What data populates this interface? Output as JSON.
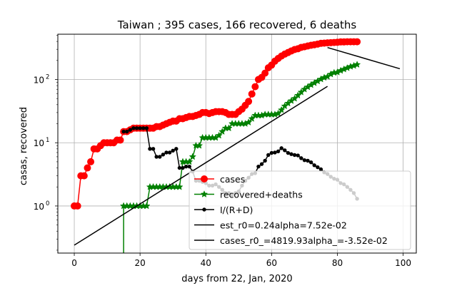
{
  "chart_data": {
    "type": "line",
    "title": "Taiwan ; 395 cases, 166 recovered, 6 deaths",
    "xlabel": "days from 22, Jan, 2020",
    "ylabel": "casas, recovered",
    "xlim": [
      -5,
      104
    ],
    "ylim": [
      0.18,
      520
    ],
    "yscale": "log",
    "grid": true,
    "legend_position": "lower right",
    "x_ticks": [
      0,
      20,
      40,
      60,
      80,
      100
    ],
    "y_ticks": [
      {
        "value": 1,
        "base": "10",
        "exp": "0"
      },
      {
        "value": 10,
        "base": "10",
        "exp": "1"
      },
      {
        "value": 100,
        "base": "10",
        "exp": "2"
      }
    ],
    "series": [
      {
        "name": "cases",
        "color": "#ff0000",
        "marker": "circle",
        "x": [
          0,
          1,
          2,
          3,
          4,
          5,
          6,
          7,
          8,
          9,
          10,
          11,
          12,
          13,
          14,
          15,
          16,
          17,
          18,
          19,
          20,
          21,
          22,
          23,
          24,
          25,
          26,
          27,
          28,
          29,
          30,
          31,
          32,
          33,
          34,
          35,
          36,
          37,
          38,
          39,
          40,
          41,
          42,
          43,
          44,
          45,
          46,
          47,
          48,
          49,
          50,
          51,
          52,
          53,
          54,
          55,
          56,
          57,
          58,
          59,
          60,
          61,
          62,
          63,
          64,
          65,
          66,
          67,
          68,
          69,
          70,
          71,
          72,
          73,
          74,
          75,
          76,
          77,
          78,
          79,
          80,
          81,
          82,
          83,
          84,
          85,
          86
        ],
        "y": [
          1,
          1,
          3,
          3,
          4,
          5,
          8,
          8,
          9,
          10,
          10,
          10,
          10,
          11,
          11,
          15,
          15,
          16,
          17,
          17,
          17,
          17,
          17,
          17,
          17,
          18,
          18,
          19,
          20,
          21,
          22,
          22,
          24,
          24,
          25,
          26,
          26,
          27,
          28,
          30,
          30,
          29,
          30,
          31,
          31,
          31,
          30,
          28,
          28,
          28,
          31,
          34,
          39,
          45,
          59,
          77,
          100,
          108,
          126,
          153,
          169,
          195,
          215,
          235,
          252,
          267,
          283,
          298,
          306,
          322,
          329,
          339,
          348,
          355,
          363,
          373,
          376,
          380,
          382,
          385,
          388,
          393,
          393,
          395,
          395,
          395,
          395
        ]
      },
      {
        "name": "recovered+deaths",
        "color": "#008000",
        "marker": "star",
        "x": [
          15,
          16,
          17,
          18,
          19,
          20,
          21,
          22,
          23,
          24,
          25,
          26,
          27,
          28,
          29,
          30,
          31,
          32,
          33,
          34,
          35,
          36,
          37,
          38,
          39,
          40,
          41,
          42,
          43,
          44,
          45,
          46,
          47,
          48,
          49,
          50,
          51,
          52,
          53,
          54,
          55,
          56,
          57,
          58,
          59,
          60,
          61,
          62,
          63,
          64,
          65,
          66,
          67,
          68,
          69,
          70,
          71,
          72,
          73,
          74,
          75,
          76,
          77,
          78,
          79,
          80,
          81,
          82,
          83,
          84,
          85,
          86
        ],
        "y": [
          1,
          1,
          1,
          1,
          1,
          1,
          1,
          1,
          2,
          2,
          2,
          2,
          2,
          2,
          2,
          2,
          2,
          2,
          5,
          5,
          5,
          6,
          9,
          9,
          12,
          12,
          12,
          12,
          12,
          13,
          15,
          17,
          17,
          20,
          20,
          20,
          20,
          20,
          21,
          24,
          27,
          27,
          27,
          28,
          28,
          28,
          28,
          29,
          33,
          38,
          42,
          46,
          50,
          56,
          63,
          70,
          76,
          82,
          88,
          94,
          101,
          107,
          111,
          121,
          128,
          130,
          138,
          145,
          152,
          160,
          165,
          172
        ]
      },
      {
        "name": "I/(R+D)",
        "color": "#000000",
        "marker": "dot",
        "x": [
          15,
          16,
          17,
          18,
          19,
          20,
          21,
          22,
          23,
          24,
          25,
          26,
          27,
          28,
          29,
          30,
          31,
          32,
          33,
          34,
          35,
          36,
          37,
          38,
          39,
          40,
          41,
          42,
          43,
          44,
          45,
          46,
          47,
          48,
          49,
          50,
          51,
          52,
          53,
          54,
          55,
          56,
          57,
          58,
          59,
          60,
          61,
          62,
          63,
          64,
          65,
          66,
          67,
          68,
          69,
          70,
          71,
          72,
          73,
          74,
          75,
          76,
          77,
          78,
          79,
          80,
          81,
          82,
          83,
          84,
          85,
          86
        ],
        "y": [
          15,
          15,
          16,
          17,
          17,
          17,
          17,
          17,
          8,
          8,
          6,
          6,
          6.5,
          7,
          7,
          7.5,
          8,
          4,
          4,
          4.2,
          4.2,
          3.5,
          2.5,
          2.5,
          2.4,
          2.3,
          2.1,
          2.1,
          2.2,
          2.0,
          1.8,
          1.6,
          1.6,
          1.5,
          1.6,
          1.7,
          2.1,
          2.5,
          2.8,
          3.2,
          3.3,
          4.2,
          4.6,
          5.2,
          6.4,
          6.9,
          7.0,
          7.3,
          8.2,
          7.6,
          6.9,
          6.6,
          6.4,
          6.3,
          5.7,
          5.3,
          5.2,
          4.9,
          4.4,
          4.1,
          3.8,
          3.4,
          3.2,
          2.9,
          2.7,
          2.6,
          2.3,
          2.2,
          2.0,
          1.8,
          1.6,
          1.3
        ]
      },
      {
        "name": "est_r0=0.24alpha=7.52e-02",
        "color": "#000000",
        "marker": "none",
        "x": [
          0,
          77
        ],
        "y": [
          0.24,
          78
        ]
      },
      {
        "name": "cases_r0_=4819.93alpha_=-3.52e-02",
        "color": "#000000",
        "marker": "none",
        "x": [
          77,
          99
        ],
        "y": [
          320,
          148
        ]
      }
    ]
  }
}
